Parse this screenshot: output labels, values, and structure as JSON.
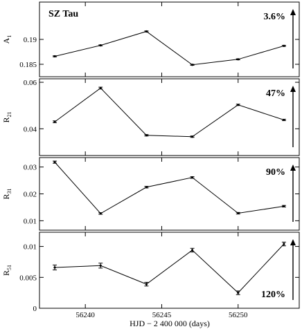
{
  "chart_data": {
    "type": "line",
    "star": "SZ Tau",
    "xlabel": "HJD − 2 400 000 (days)",
    "xlim": [
      56237,
      56254
    ],
    "xticks": [
      56240,
      56245,
      56250
    ],
    "xtick_labels": [
      "56240",
      "56245",
      "56250"
    ],
    "x": [
      56238,
      56241,
      56244,
      56247,
      56250,
      56253
    ],
    "panels": [
      {
        "ylabel": "A",
        "ylabel_sub": "1",
        "ylim": [
          0.1825,
          0.1975
        ],
        "yticks": [
          0.185,
          0.19
        ],
        "ytick_labels": [
          "0.185",
          "0.19"
        ],
        "values": [
          0.1866,
          0.1888,
          0.1916,
          0.1849,
          0.186,
          0.1887
        ],
        "errors": [
          0.0001,
          0.0001,
          0.0001,
          0.0001,
          0.0001,
          0.0001
        ],
        "amplitude": "3.6%",
        "arrow_dir": "up",
        "label_pos": "top"
      },
      {
        "ylabel": "R",
        "ylabel_sub": "21",
        "ylim": [
          0.0285,
          0.0615
        ],
        "yticks": [
          0.04,
          0.06
        ],
        "ytick_labels": [
          "0.04",
          "0.06"
        ],
        "values": [
          0.043,
          0.0575,
          0.0372,
          0.0366,
          0.0503,
          0.0438
        ],
        "errors": [
          0.0004,
          0.0004,
          0.0003,
          0.0003,
          0.0003,
          0.0003
        ],
        "amplitude": "47%",
        "arrow_dir": "up",
        "label_pos": "top"
      },
      {
        "ylabel": "R",
        "ylabel_sub": "31",
        "ylim": [
          0.0065,
          0.0335
        ],
        "yticks": [
          0.01,
          0.02,
          0.03
        ],
        "ytick_labels": [
          "0.01",
          "0.02",
          "0.03"
        ],
        "values": [
          0.0318,
          0.0127,
          0.0225,
          0.0261,
          0.0128,
          0.0154
        ],
        "errors": [
          0.0004,
          0.0003,
          0.0003,
          0.0003,
          0.0003,
          0.0003
        ],
        "amplitude": "90%",
        "arrow_dir": "up",
        "label_pos": "top"
      },
      {
        "ylabel": "R",
        "ylabel_sub": "51",
        "ylim": [
          0,
          0.0123
        ],
        "yticks": [
          0,
          0.005,
          0.01
        ],
        "ytick_labels": [
          "0",
          "0.005",
          "0.01"
        ],
        "values": [
          0.0066,
          0.0069,
          0.0039,
          0.0094,
          0.0025,
          0.0104
        ],
        "errors": [
          0.0004,
          0.0004,
          0.0003,
          0.0003,
          0.0003,
          0.0003
        ],
        "amplitude": "120%",
        "arrow_dir": "up",
        "label_pos": "bottom"
      }
    ]
  }
}
